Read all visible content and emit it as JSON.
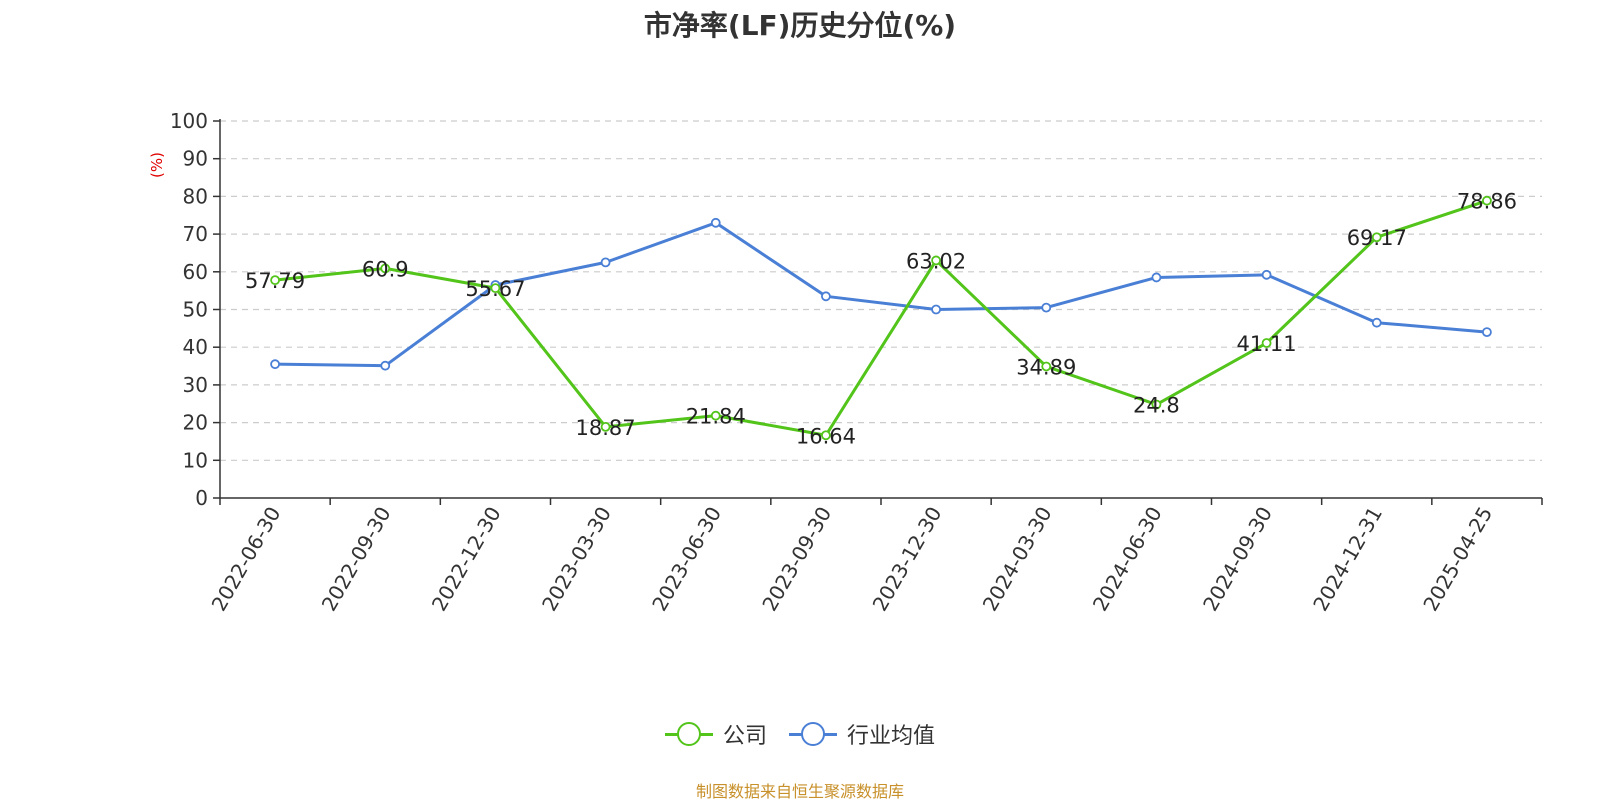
{
  "chart_data": {
    "type": "line",
    "title": "市净率(LF)历史分位(%)",
    "ylabel": "(%)",
    "ylim": [
      0,
      100
    ],
    "yticks": [
      0,
      10,
      20,
      30,
      40,
      50,
      60,
      70,
      80,
      90,
      100
    ],
    "categories": [
      "2022-06-30",
      "2022-09-30",
      "2022-12-30",
      "2023-03-30",
      "2023-06-30",
      "2023-09-30",
      "2023-12-30",
      "2024-03-30",
      "2024-06-30",
      "2024-09-30",
      "2024-12-31",
      "2025-04-25"
    ],
    "series": [
      {
        "name": "公司",
        "color": "#52c41a",
        "values": [
          57.79,
          60.9,
          55.67,
          18.87,
          21.84,
          16.64,
          63.02,
          34.89,
          24.8,
          41.11,
          69.17,
          78.86
        ],
        "labels": [
          "57.79",
          "60.9",
          "55.67",
          "18.87",
          "21.84",
          "16.64",
          "63.02",
          "34.89",
          "24.8",
          "41.11",
          "69.17",
          "78.86"
        ],
        "show_labels": true
      },
      {
        "name": "行业均值",
        "color": "#4a7fd6",
        "values": [
          35.5,
          35.1,
          56.5,
          62.5,
          73.0,
          53.5,
          50.0,
          50.5,
          58.5,
          59.2,
          46.5,
          44.0
        ],
        "show_labels": false
      }
    ],
    "grid": true,
    "legend_position": "bottom-center"
  },
  "legend": {
    "company_label": "公司",
    "industry_label": "行业均值",
    "company_color": "#52c41a",
    "industry_color": "#4a7fd6"
  },
  "footer": {
    "source": "制图数据来自恒生聚源数据库"
  }
}
